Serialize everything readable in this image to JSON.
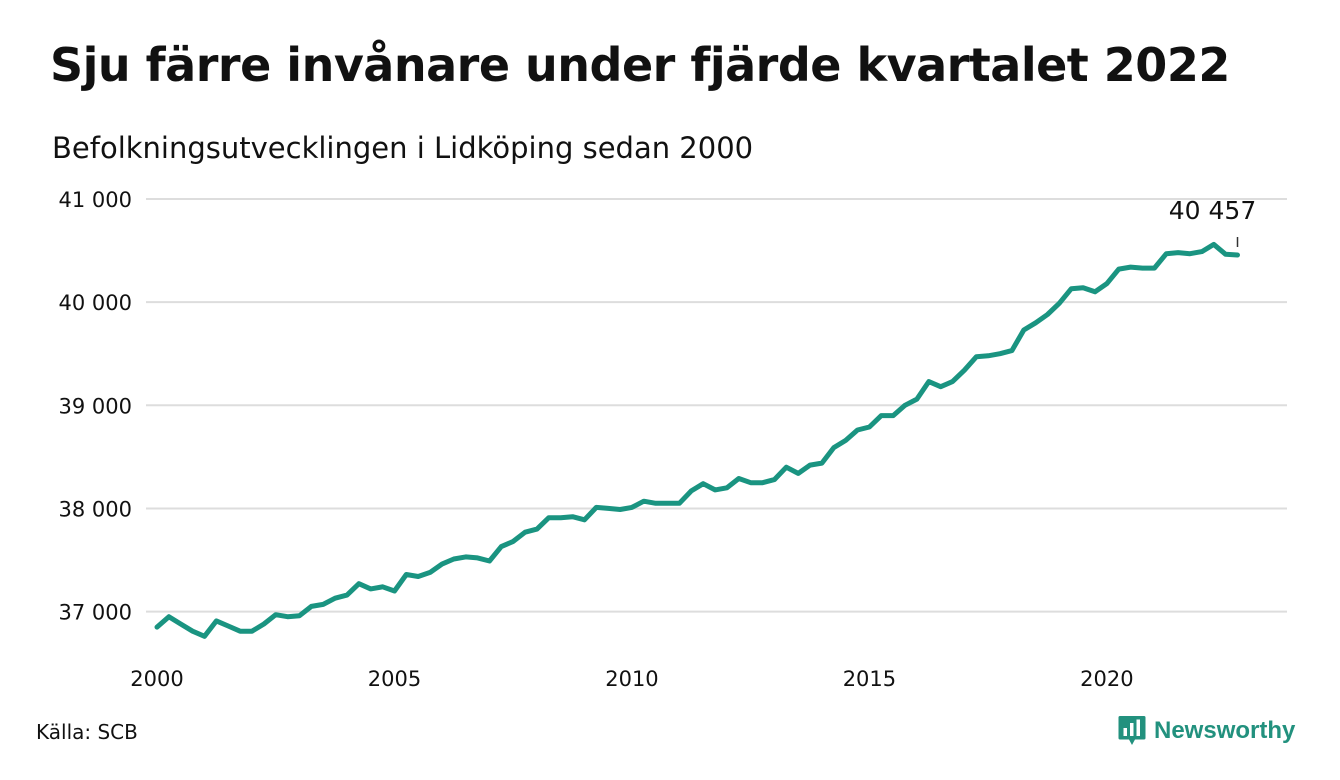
{
  "header": {
    "title": "Sju färre invånare under fjärde kvartalet 2022",
    "subtitle": "Befolkningsutvecklingen i Lidköping sedan 2000"
  },
  "footer": {
    "source": "Källa: SCB",
    "brand": "Newsworthy",
    "brand_icon": "newsworthy-logo-icon"
  },
  "colors": {
    "line": "#1a9481",
    "grid": "#dddddd",
    "brand": "#22917e"
  },
  "chart_data": {
    "type": "line",
    "title": "Sju färre invånare under fjärde kvartalet 2022",
    "subtitle": "Befolkningsutvecklingen i Lidköping sedan 2000",
    "xlabel": "",
    "ylabel": "",
    "grid": true,
    "legend": "none",
    "xlim": [
      2000,
      2023.75
    ],
    "ylim": [
      36550,
      41000
    ],
    "x_ticks": [
      2000,
      2005,
      2010,
      2015,
      2020
    ],
    "x_tick_labels": [
      "2000",
      "2005",
      "2010",
      "2015",
      "2020"
    ],
    "y_ticks": [
      37000,
      38000,
      39000,
      40000,
      41000
    ],
    "y_tick_labels": [
      "37 000",
      "38 000",
      "39 000",
      "40 000",
      "41 000"
    ],
    "end_label": "40 457",
    "x": [
      2000.0,
      2000.25,
      2000.5,
      2000.75,
      2001.0,
      2001.25,
      2001.5,
      2001.75,
      2002.0,
      2002.25,
      2002.5,
      2002.75,
      2003.0,
      2003.25,
      2003.5,
      2003.75,
      2004.0,
      2004.25,
      2004.5,
      2004.75,
      2005.0,
      2005.25,
      2005.5,
      2005.75,
      2006.0,
      2006.25,
      2006.5,
      2006.75,
      2007.0,
      2007.25,
      2007.5,
      2007.75,
      2008.0,
      2008.25,
      2008.5,
      2008.75,
      2009.0,
      2009.25,
      2009.5,
      2009.75,
      2010.0,
      2010.25,
      2010.5,
      2010.75,
      2011.0,
      2011.25,
      2011.5,
      2011.75,
      2012.0,
      2012.25,
      2012.5,
      2012.75,
      2013.0,
      2013.25,
      2013.5,
      2013.75,
      2014.0,
      2014.25,
      2014.5,
      2014.75,
      2015.0,
      2015.25,
      2015.5,
      2015.75,
      2016.0,
      2016.25,
      2016.5,
      2016.75,
      2017.0,
      2017.25,
      2017.5,
      2017.75,
      2018.0,
      2018.25,
      2018.5,
      2018.75,
      2019.0,
      2019.25,
      2019.5,
      2019.75,
      2020.0,
      2020.25,
      2020.5,
      2020.75,
      2021.0,
      2021.25,
      2021.5,
      2021.75,
      2022.0,
      2022.25,
      2022.5,
      2022.75
    ],
    "series": [
      {
        "values": [
          36850,
          36950,
          36880,
          36810,
          36760,
          36910,
          36860,
          36810,
          36810,
          36880,
          36970,
          36950,
          36960,
          37050,
          37070,
          37130,
          37160,
          37270,
          37220,
          37240,
          37200,
          37360,
          37340,
          37380,
          37460,
          37510,
          37530,
          37520,
          37490,
          37630,
          37680,
          37770,
          37800,
          37910,
          37910,
          37920,
          37890,
          38010,
          38000,
          37990,
          38010,
          38070,
          38050,
          38050,
          38050,
          38170,
          38240,
          38180,
          38200,
          38290,
          38250,
          38250,
          38280,
          38400,
          38340,
          38420,
          38440,
          38590,
          38660,
          38760,
          38790,
          38900,
          38900,
          39000,
          39060,
          39230,
          39180,
          39230,
          39340,
          39470,
          39480,
          39500,
          39530,
          39730,
          39800,
          39880,
          39990,
          40130,
          40140,
          40100,
          40180,
          40320,
          40340,
          40330,
          40330,
          40470,
          40480,
          40470,
          40490,
          40560,
          40464,
          40457
        ]
      }
    ]
  }
}
